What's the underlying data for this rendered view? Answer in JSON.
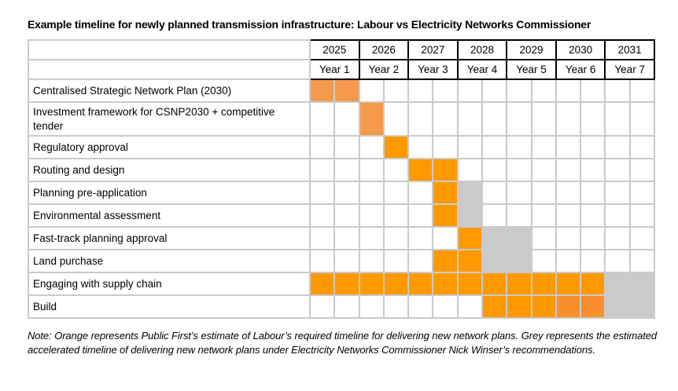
{
  "page": {
    "title": "Example timeline for newly planned transmission infrastructure: Labour vs Electricity Networks Commissioner",
    "note": "Note: Orange represents Public First’s estimate of Labour’s required timeline for delivering new network plans. Grey represents the estimated accelerated timeline of delivering new network plans under Electricity Networks Commissioner Nick Winser’s recommendations."
  },
  "chart_data": {
    "type": "table",
    "subtype": "gantt-timeline",
    "title": "Example timeline for newly planned transmission infrastructure: Labour vs Electricity Networks Commissioner",
    "columns_per_year": 2,
    "years": [
      "2025",
      "2026",
      "2027",
      "2028",
      "2029",
      "2030",
      "2031"
    ],
    "year_labels": [
      "Year 1",
      "Year 2",
      "Year 3",
      "Year 4",
      "Year 5",
      "Year 6",
      "Year 7"
    ],
    "colors": {
      "orange": "#FF9900",
      "light_orange": "#F5994D",
      "mid_orange": "#FA8F2D",
      "grey": "#CACACA",
      "grid": "#CACACA",
      "header_border": "#000000",
      "background": "#FFFFFF"
    },
    "legend": {
      "orange": "Public First’s estimate of Labour’s required timeline for delivering new network plans",
      "grey": "Estimated accelerated timeline under Electricity Networks Commissioner Nick Winser’s recommendations"
    },
    "cell_codes": {
      "O": "orange",
      "LO": "light_orange",
      "MO": "mid_orange",
      "G": "grey",
      "": "empty"
    },
    "rows": [
      {
        "label": "Centralised Strategic Network Plan (2030)",
        "cells": [
          "LO",
          "LO",
          "",
          "",
          "",
          "",
          "",
          "",
          "",
          "",
          "",
          "",
          "",
          ""
        ]
      },
      {
        "label": "Investment framework for CSNP2030 + competitive tender",
        "cells": [
          "",
          "",
          "LO",
          "",
          "",
          "",
          "",
          "",
          "",
          "",
          "",
          "",
          "",
          ""
        ]
      },
      {
        "label": "Regulatory approval",
        "cells": [
          "",
          "",
          "",
          "O",
          "",
          "",
          "",
          "",
          "",
          "",
          "",
          "",
          "",
          ""
        ]
      },
      {
        "label": "Routing and design",
        "cells": [
          "",
          "",
          "",
          "",
          "O",
          "O",
          "",
          "",
          "",
          "",
          "",
          "",
          "",
          ""
        ]
      },
      {
        "label": "Planning pre-application",
        "cells": [
          "",
          "",
          "",
          "",
          "",
          "O",
          "G",
          "",
          "",
          "",
          "",
          "",
          "",
          ""
        ]
      },
      {
        "label": "Environmental assessment",
        "cells": [
          "",
          "",
          "",
          "",
          "",
          "O",
          "G",
          "",
          "",
          "",
          "",
          "",
          "",
          ""
        ]
      },
      {
        "label": "Fast-track planning approval",
        "cells": [
          "",
          "",
          "",
          "",
          "",
          "",
          "O",
          "G",
          "G",
          "",
          "",
          "",
          "",
          ""
        ]
      },
      {
        "label": "Land purchase",
        "cells": [
          "",
          "",
          "",
          "",
          "",
          "O",
          "O",
          "G",
          "G",
          "",
          "",
          "",
          "",
          ""
        ]
      },
      {
        "label": "Engaging with supply chain",
        "cells": [
          "O",
          "O",
          "O",
          "O",
          "O",
          "O",
          "O",
          "O",
          "O",
          "O",
          "O",
          "O",
          "G",
          "G"
        ]
      },
      {
        "label": "Build",
        "cells": [
          "",
          "",
          "",
          "",
          "",
          "",
          "",
          "O",
          "O",
          "O",
          "MO",
          "MO",
          "G",
          "G"
        ]
      }
    ]
  }
}
